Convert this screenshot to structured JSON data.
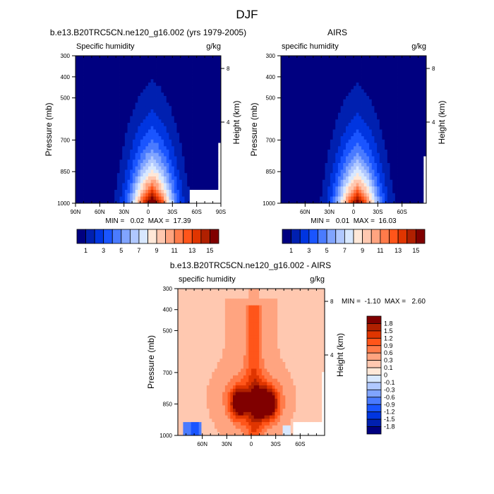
{
  "figure_title": "DJF",
  "colors": {
    "seq": [
      "#000080",
      "#0020b0",
      "#0035e0",
      "#1a55ff",
      "#4a7bff",
      "#80a4ff",
      "#b0c8ff",
      "#d8e8ff",
      "#ffe8d8",
      "#ffc8b0",
      "#ffa480",
      "#ff7b4a",
      "#ff551a",
      "#e03500",
      "#b02000",
      "#800000"
    ],
    "missing": "#ffffff"
  },
  "chart_data": [
    {
      "type": "heatmap",
      "title": "b.e13.B20TRC5CN.ne120_g16.002 (yrs 1979-2005)",
      "left_string": "Specific humidity",
      "right_string": "g/kg",
      "ylabel": "Pressure (mb)",
      "ylabel_right": "Height (km)",
      "yticks": [
        300,
        400,
        500,
        700,
        850,
        1000
      ],
      "ylim": [
        300,
        1000
      ],
      "yticks_right": [
        "8",
        "4"
      ],
      "xticks": [
        "90N",
        "60N",
        "30N",
        "0",
        "30S",
        "60S",
        "90S"
      ],
      "xlim": [
        "90N",
        "90S"
      ],
      "min_max": "MIN =   0.02  MAX =  17.39",
      "colorbar": {
        "orientation": "horizontal",
        "levels": [
          1,
          2,
          3,
          4,
          5,
          6,
          7,
          8,
          9,
          10,
          11,
          12,
          13,
          14,
          15
        ],
        "labels": [
          "1",
          "3",
          "5",
          "7",
          "9",
          "11",
          "13",
          "15"
        ]
      }
    },
    {
      "type": "heatmap",
      "title": "AIRS",
      "left_string": "specific humidity",
      "right_string": "g/kg",
      "ylabel": "Pressure (mb)",
      "ylabel_right": "Height (km)",
      "yticks": [
        300,
        400,
        500,
        700,
        850,
        1000
      ],
      "ylim": [
        300,
        1000
      ],
      "yticks_right": [
        "8",
        "4"
      ],
      "xticks": [
        "60N",
        "30N",
        "0",
        "30S",
        "60S"
      ],
      "min_max": "MIN =   0.01  MAX =  16.03",
      "colorbar": {
        "orientation": "horizontal",
        "levels": [
          1,
          2,
          3,
          4,
          5,
          6,
          7,
          8,
          9,
          10,
          11,
          12,
          13,
          14,
          15
        ],
        "labels": [
          "1",
          "3",
          "5",
          "7",
          "9",
          "11",
          "13",
          "15"
        ]
      }
    },
    {
      "type": "heatmap",
      "title": "b.e13.B20TRC5CN.ne120_g16.002 - AIRS",
      "left_string": "specific humidity",
      "right_string": "g/kg",
      "ylabel": "Pressure (mb)",
      "ylabel_right": "Height (km)",
      "yticks": [
        300,
        400,
        500,
        700,
        850,
        1000
      ],
      "ylim": [
        300,
        1000
      ],
      "yticks_right": [
        "8",
        "4"
      ],
      "xticks": [
        "60N",
        "30N",
        "0",
        "30S",
        "60S"
      ],
      "min_max": "MIN =  -1.10  MAX =   2.60",
      "colorbar": {
        "orientation": "vertical",
        "levels": [
          -1.8,
          -1.5,
          -1.2,
          -0.9,
          -0.6,
          -0.3,
          -0.1,
          0,
          0.1,
          0.3,
          0.6,
          0.9,
          1.2,
          1.5,
          1.8
        ],
        "labels": [
          "1.8",
          "1.5",
          "1.2",
          "0.9",
          "0.6",
          "0.3",
          "0.1",
          "0",
          "-0.1",
          "-0.3",
          "-0.6",
          "-0.9",
          "-1.2",
          "-1.5",
          "-1.8"
        ]
      }
    }
  ]
}
